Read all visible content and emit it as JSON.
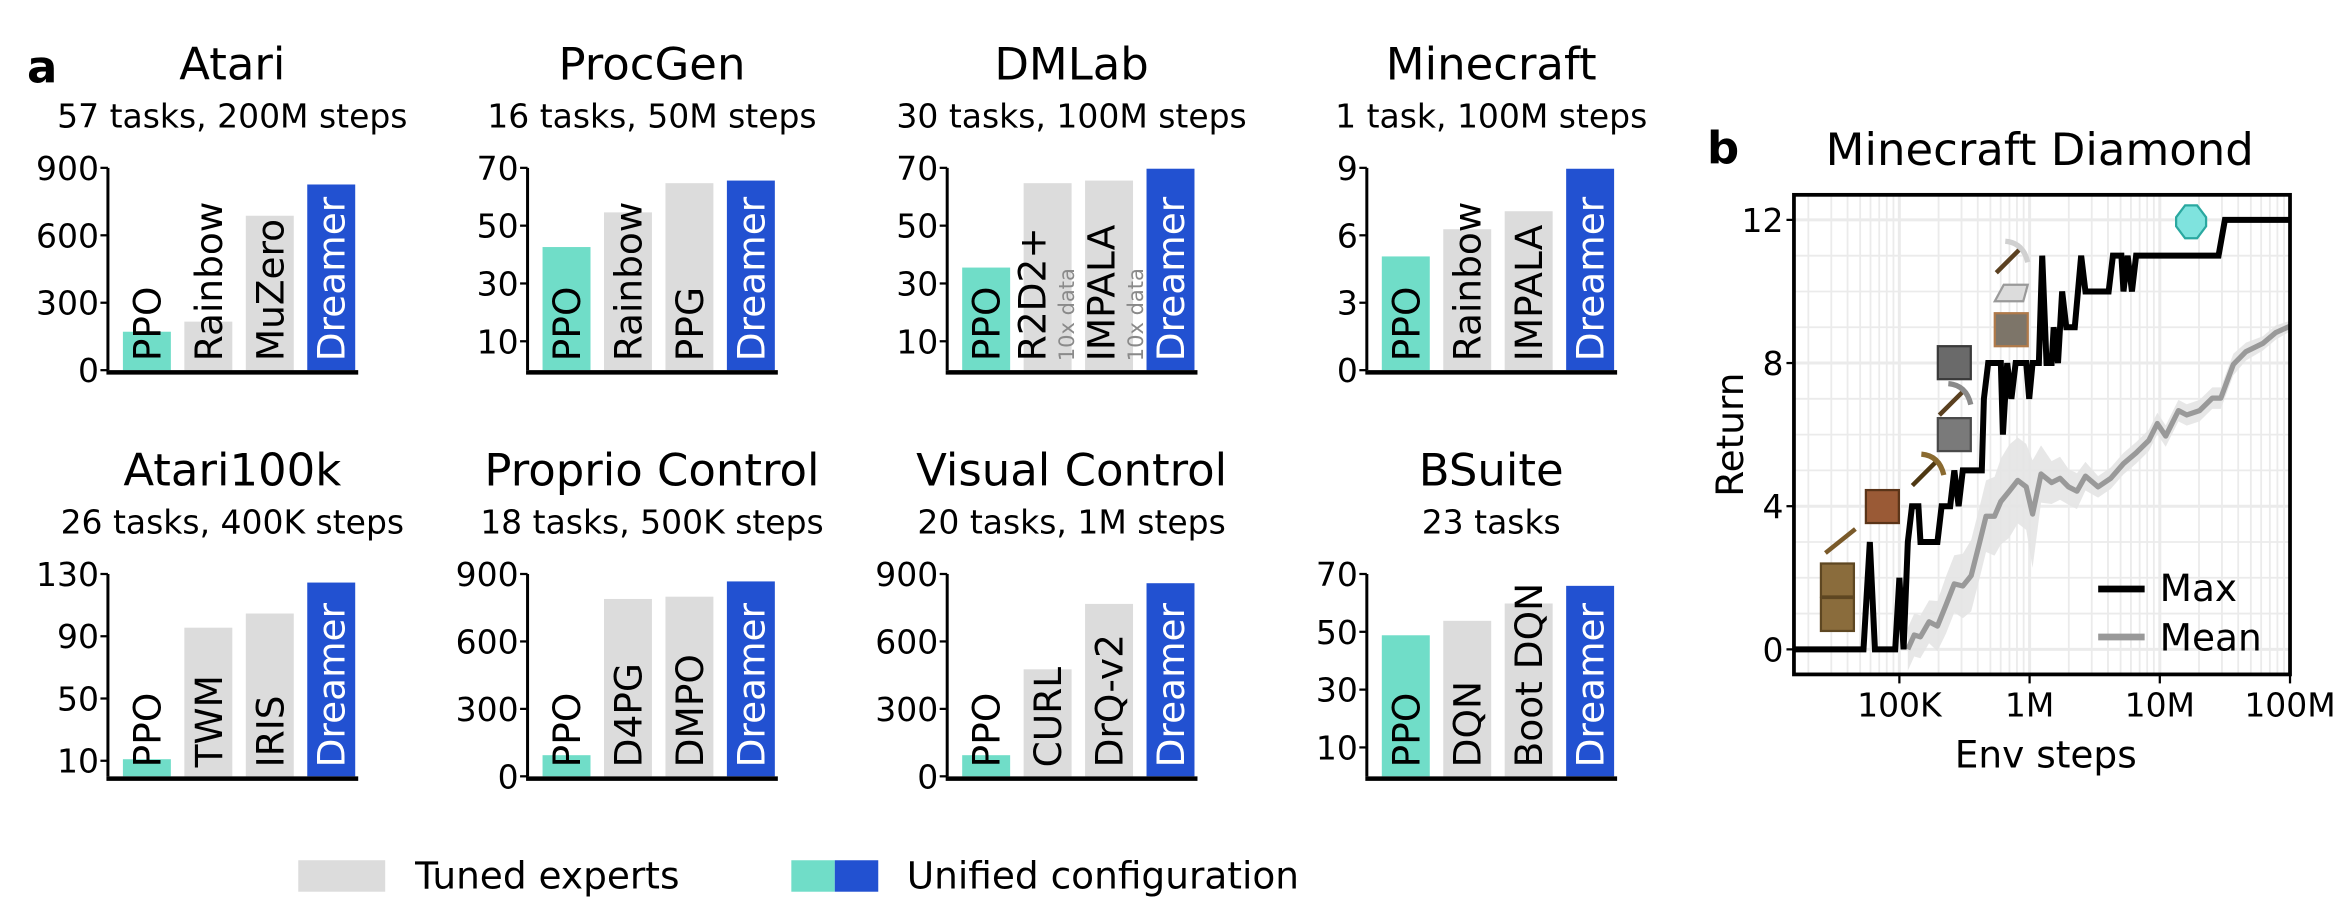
{
  "panel_labels": {
    "a": "a",
    "b": "b"
  },
  "legend": {
    "tuned": "Tuned experts",
    "unified": "Unified configuration"
  },
  "colors": {
    "ppo": "#70ddc8",
    "dreamer": "#2251d1",
    "tuned": "#dcdcdc",
    "max_line": "#000000",
    "mean_line": "#999999",
    "band": "#e4e4e4",
    "grid": "#ebebeb"
  },
  "chart_data": [
    {
      "type": "bar",
      "title": "Atari",
      "subtitle": "57 tasks, 200M steps",
      "categories": [
        "PPO",
        "Rainbow",
        "MuZero",
        "Dreamer"
      ],
      "groups": [
        "unified",
        "tuned",
        "tuned",
        "unified"
      ],
      "values": [
        171,
        216,
        687,
        826
      ],
      "ylim": [
        0,
        900
      ],
      "yticks": [
        0,
        300,
        600,
        900
      ],
      "notes": [
        "",
        "",
        "",
        ""
      ]
    },
    {
      "type": "bar",
      "title": "ProcGen",
      "subtitle": "16 tasks, 50M steps",
      "categories": [
        "PPO",
        "Rainbow",
        "PPG",
        "Dreamer"
      ],
      "groups": [
        "unified",
        "tuned",
        "tuned",
        "unified"
      ],
      "values": [
        42.6,
        54.6,
        64.7,
        65.6
      ],
      "ylim": [
        0,
        70
      ],
      "yticks": [
        10,
        30,
        50,
        70
      ],
      "notes": [
        "",
        "",
        "",
        ""
      ]
    },
    {
      "type": "bar",
      "title": "DMLab",
      "subtitle": "30 tasks, 100M steps",
      "categories": [
        "PPO",
        "R2D2+",
        "IMPALA",
        "Dreamer"
      ],
      "groups": [
        "unified",
        "tuned",
        "tuned",
        "unified"
      ],
      "values": [
        35.5,
        64.7,
        65.6,
        69.7
      ],
      "ylim": [
        0,
        70
      ],
      "yticks": [
        10,
        30,
        50,
        70
      ],
      "notes": [
        "",
        "10x data",
        "10x data",
        ""
      ]
    },
    {
      "type": "bar",
      "title": "Minecraft",
      "subtitle": "1 task, 100M steps",
      "categories": [
        "PPO",
        "Rainbow",
        "IMPALA",
        "Dreamer"
      ],
      "groups": [
        "unified",
        "tuned",
        "tuned",
        "unified"
      ],
      "values": [
        5.06,
        6.27,
        7.07,
        8.96
      ],
      "ylim": [
        0,
        9
      ],
      "yticks": [
        0,
        3,
        6,
        9
      ],
      "notes": [
        "",
        "",
        "",
        ""
      ]
    },
    {
      "type": "bar",
      "title": "Atari100k",
      "subtitle": "26 tasks, 400K steps",
      "categories": [
        "PPO",
        "TWM",
        "IRIS",
        "Dreamer"
      ],
      "groups": [
        "unified",
        "tuned",
        "tuned",
        "unified"
      ],
      "values": [
        11,
        95.5,
        104.6,
        124.5
      ],
      "ylim": [
        0,
        130
      ],
      "yticks": [
        10,
        50,
        90,
        130
      ],
      "notes": [
        "",
        "",
        "",
        ""
      ]
    },
    {
      "type": "bar",
      "title": "Proprio Control",
      "subtitle": "18 tasks, 500K steps",
      "categories": [
        "PPO",
        "D4PG",
        "DMPO",
        "Dreamer"
      ],
      "groups": [
        "unified",
        "tuned",
        "tuned",
        "unified"
      ],
      "values": [
        94,
        789,
        799,
        867
      ],
      "ylim": [
        0,
        900
      ],
      "yticks": [
        0,
        300,
        600,
        900
      ],
      "notes": [
        "",
        "",
        "",
        ""
      ]
    },
    {
      "type": "bar",
      "title": "Visual Control",
      "subtitle": "20 tasks, 1M steps",
      "categories": [
        "PPO",
        "CURL",
        "DrQ-v2",
        "Dreamer"
      ],
      "groups": [
        "unified",
        "tuned",
        "tuned",
        "unified"
      ],
      "values": [
        94,
        476,
        767,
        859
      ],
      "ylim": [
        0,
        900
      ],
      "yticks": [
        0,
        300,
        600,
        900
      ],
      "notes": [
        "",
        "",
        "",
        ""
      ]
    },
    {
      "type": "bar",
      "title": "BSuite",
      "subtitle": "23 tasks",
      "categories": [
        "PPO",
        "DQN",
        "Boot DQN",
        "Dreamer"
      ],
      "groups": [
        "unified",
        "tuned",
        "tuned",
        "unified"
      ],
      "values": [
        48.8,
        53.8,
        59.8,
        65.9
      ],
      "ylim": [
        0,
        70
      ],
      "yticks": [
        10,
        30,
        50,
        70
      ],
      "notes": [
        "",
        "",
        "",
        ""
      ]
    },
    {
      "type": "line",
      "title": "Minecraft Diamond",
      "xlabel": "Env steps",
      "ylabel": "Return",
      "xscale": "log",
      "xlim": [
        15500,
        100000000
      ],
      "ylim": [
        -0.7,
        12.7
      ],
      "xticks": [
        100000,
        1000000,
        10000000,
        100000000
      ],
      "xtick_labels": [
        "100K",
        "1M",
        "10M",
        "100M"
      ],
      "yticks": [
        0,
        4,
        8,
        12
      ],
      "grid": true,
      "legend_position": "lower-right",
      "series": [
        {
          "name": "Max",
          "x": [
            15400,
            53000,
            59300,
            64900,
            92900,
            100000,
            107700,
            116100,
            125000,
            140000,
            145200,
            196000,
            211000,
            245500,
            264200,
            285100,
            306900,
            429500,
            445700,
            480800,
            601300,
            623700,
            673000,
            724400,
            781600,
            941900,
            993100,
            1054000,
            1178000,
            1250000,
            1349000,
            1476000,
            1531000,
            1652000,
            1778000,
            1914000,
            2223000,
            2489000,
            2685000,
            4046000,
            4365000,
            5070000,
            5260000,
            5662000,
            6109000,
            6577000,
            28250000,
            31620000,
            100000000
          ],
          "y": [
            0,
            0,
            3,
            0,
            0,
            2,
            0,
            3,
            4,
            4,
            3,
            3,
            4,
            4,
            5,
            4,
            5,
            5,
            7,
            8,
            8,
            6,
            8,
            7,
            8,
            8,
            7,
            8,
            8,
            11,
            8,
            8,
            9,
            8,
            10,
            9,
            9,
            11,
            10,
            10,
            11,
            11,
            10,
            11,
            10,
            11,
            11,
            12,
            12
          ]
        },
        {
          "name": "Mean",
          "x": [
            116000,
            130000,
            145000,
            169000,
            196000,
            228000,
            264000,
            307000,
            356000,
            414000,
            463000,
            538000,
            601000,
            698000,
            811000,
            942000,
            1054000,
            1224000,
            1476000,
            1714000,
            1990000,
            2311000,
            2685000,
            3357000,
            4198000,
            5260000,
            6577000,
            8240000,
            9570000,
            11100000,
            13900000,
            16100000,
            20200000,
            25300000,
            29400000,
            36700000,
            45900000,
            61900000,
            77600000,
            100000000
          ],
          "y": [
            0,
            0.4,
            0.35,
            0.77,
            0.65,
            1.24,
            1.83,
            1.77,
            2.06,
            3.0,
            3.72,
            3.72,
            4.13,
            4.42,
            4.72,
            4.54,
            3.78,
            4.9,
            4.66,
            4.78,
            4.54,
            4.42,
            4.84,
            4.54,
            4.78,
            5.19,
            5.49,
            5.84,
            6.31,
            5.96,
            6.67,
            6.55,
            6.67,
            7.02,
            7.02,
            7.96,
            8.32,
            8.55,
            8.85,
            9.03
          ],
          "band": [
            0.6,
            0.6,
            0.6,
            0.6,
            0.7,
            0.8,
            0.8,
            0.9,
            1.0,
            1.0,
            1.0,
            1.1,
            1.2,
            1.3,
            1.2,
            1.2,
            1.5,
            0.8,
            0.6,
            0.6,
            0.5,
            0.5,
            0.4,
            0.3,
            0.3,
            0.3,
            0.3,
            0.3,
            0.3,
            0.3,
            0.3,
            0.3,
            0.3,
            0.3,
            0.3,
            0.3,
            0.25,
            0.2,
            0.2,
            0.15
          ]
        }
      ],
      "icons": [
        "log-icon",
        "log-icon",
        "stick-icon",
        "crafting-table-icon",
        "wooden-pickaxe-icon",
        "cobblestone-icon",
        "stone-pickaxe-icon",
        "furnace-icon",
        "iron-ore-icon",
        "iron-ingot-icon",
        "iron-pickaxe-icon",
        "diamond-icon"
      ]
    }
  ]
}
